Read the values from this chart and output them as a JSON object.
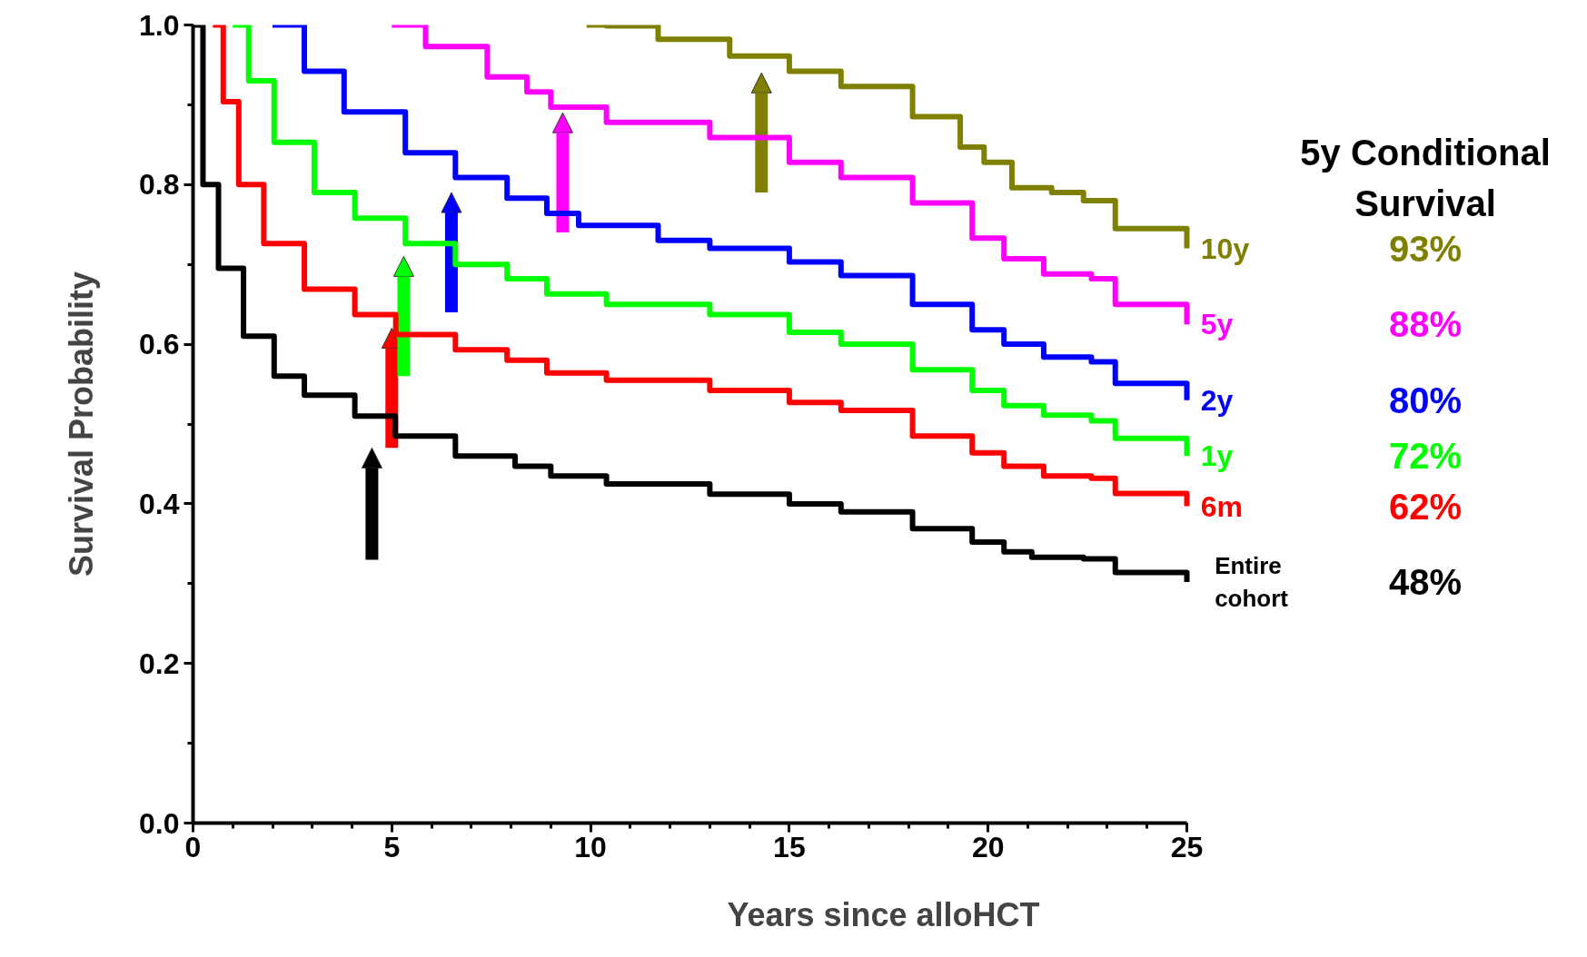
{
  "chart_data": {
    "type": "step",
    "xlabel": "Years since alloHCT",
    "ylabel": "Survival Probability",
    "xlim": [
      0,
      25
    ],
    "xticks": [
      0,
      5,
      10,
      15,
      20,
      25
    ],
    "ylim": [
      0,
      1
    ],
    "yticks": [
      {
        "value": 0,
        "label": "0.0"
      },
      0.2,
      0.4,
      0.6,
      0.8,
      {
        "value": 1,
        "label": "1.0"
      }
    ],
    "grid": false,
    "legend": false,
    "annotations": [
      "5y Conditional Survival",
      "93%",
      "88%",
      "80%",
      "72%",
      "62%",
      "48%"
    ],
    "series": [
      {
        "name": "10y",
        "color": "#808000",
        "x": [
          9.9,
          10.4,
          11.7,
          13.5,
          15,
          16.3,
          18.1,
          19.3,
          19.9,
          20.6,
          21.6,
          22.4,
          23.2,
          24.2,
          25
        ],
        "values": [
          1.0,
          0.999,
          0.982,
          0.961,
          0.942,
          0.923,
          0.885,
          0.847,
          0.828,
          0.796,
          0.79,
          0.78,
          0.745,
          0.745,
          0.72
        ]
      },
      {
        "name": "5y",
        "color": "#ff00ff",
        "x": [
          5.0,
          5.85,
          7.4,
          8.4,
          9.0,
          10.4,
          13,
          15,
          16.3,
          18.1,
          19.6,
          20.4,
          21.4,
          22.6,
          23.2,
          24.2,
          25
        ],
        "values": [
          1.0,
          0.973,
          0.935,
          0.916,
          0.897,
          0.878,
          0.859,
          0.828,
          0.809,
          0.777,
          0.733,
          0.707,
          0.688,
          0.682,
          0.65,
          0.65,
          0.625
        ]
      },
      {
        "name": "2y",
        "color": "#0000ff",
        "x": [
          2.0,
          2.8,
          3.8,
          5.34,
          6.6,
          7.9,
          8.9,
          9.7,
          11.7,
          13,
          15,
          16.3,
          18.1,
          19.6,
          20.4,
          21.4,
          22.6,
          23.2,
          24.2,
          25
        ],
        "values": [
          1.0,
          0.942,
          0.891,
          0.84,
          0.809,
          0.783,
          0.764,
          0.749,
          0.73,
          0.72,
          0.703,
          0.686,
          0.65,
          0.618,
          0.6,
          0.584,
          0.578,
          0.551,
          0.551,
          0.53
        ]
      },
      {
        "name": "1y",
        "color": "#00ff00",
        "x": [
          1.0,
          1.4,
          2.04,
          3.05,
          4.07,
          5.34,
          6.6,
          7.9,
          8.9,
          10.4,
          13,
          15,
          16.3,
          18.1,
          19.6,
          20.4,
          21.4,
          22.6,
          23.2,
          24.2,
          25
        ],
        "values": [
          1.0,
          0.93,
          0.853,
          0.79,
          0.758,
          0.726,
          0.7,
          0.682,
          0.663,
          0.65,
          0.637,
          0.615,
          0.6,
          0.568,
          0.542,
          0.523,
          0.511,
          0.504,
          0.482,
          0.482,
          0.46
        ]
      },
      {
        "name": "6m",
        "color": "#ff0000",
        "x": [
          0.5,
          0.76,
          1.15,
          1.78,
          2.8,
          4.07,
          5.1,
          6.6,
          7.9,
          8.9,
          10.4,
          13,
          15,
          16.3,
          18.1,
          19.6,
          20.4,
          21.4,
          22.6,
          23.2,
          24.2,
          25
        ],
        "values": [
          1.0,
          0.904,
          0.8,
          0.726,
          0.669,
          0.637,
          0.612,
          0.593,
          0.58,
          0.564,
          0.555,
          0.542,
          0.527,
          0.517,
          0.485,
          0.464,
          0.447,
          0.435,
          0.432,
          0.413,
          0.413,
          0.397
        ]
      },
      {
        "name": "Entire cohort",
        "color": "#000000",
        "x": [
          0,
          0.25,
          0.64,
          1.27,
          2.04,
          2.8,
          4.07,
          5.09,
          6.6,
          8.1,
          9.0,
          10.4,
          13,
          15,
          16.3,
          18.1,
          19.6,
          20.4,
          21.1,
          22.4,
          23.2,
          24.2,
          25
        ],
        "values": [
          1.0,
          0.8,
          0.695,
          0.61,
          0.56,
          0.536,
          0.51,
          0.485,
          0.46,
          0.447,
          0.435,
          0.425,
          0.412,
          0.4,
          0.39,
          0.369,
          0.352,
          0.34,
          0.333,
          0.331,
          0.314,
          0.314,
          0.302
        ]
      }
    ]
  }
}
